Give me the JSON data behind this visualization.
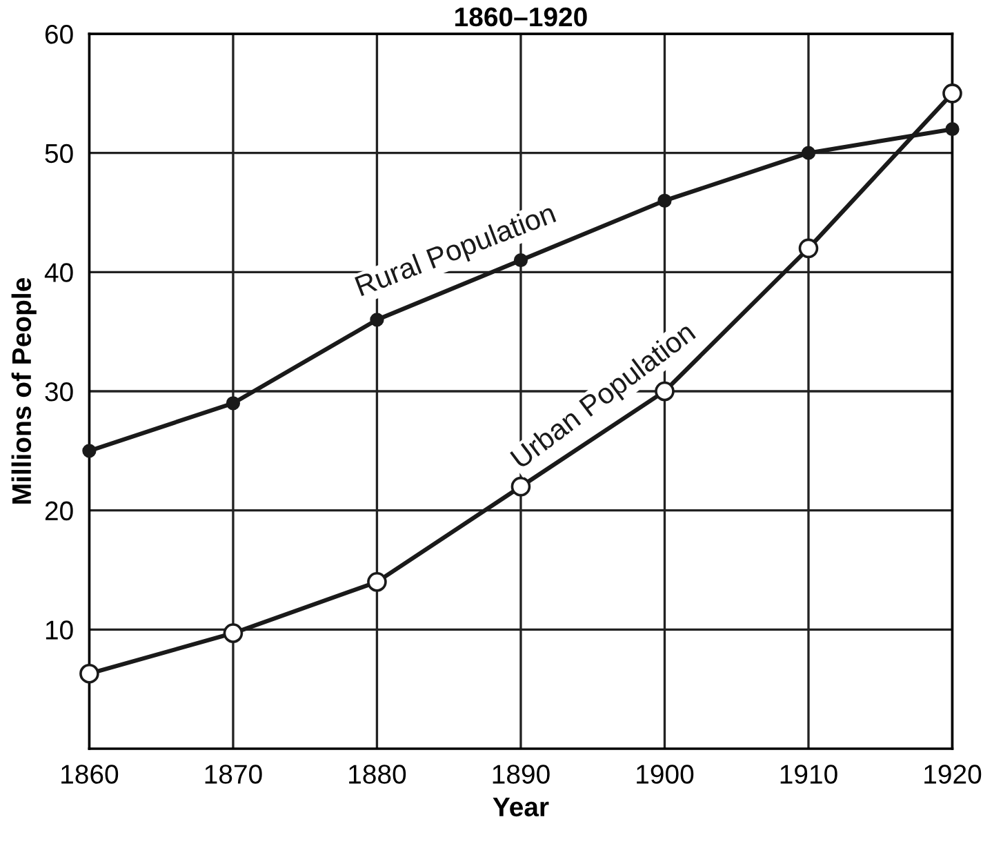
{
  "chart_data": {
    "type": "line",
    "title": "1860–1920",
    "xlabel": "Year",
    "ylabel": "Millions of People",
    "x": [
      1860,
      1870,
      1880,
      1890,
      1900,
      1910,
      1920
    ],
    "series": [
      {
        "name": "Rural Population",
        "color": "#1a1a1a",
        "marker": "circle",
        "values": [
          25,
          29,
          36,
          41,
          46,
          50,
          52
        ]
      },
      {
        "name": "Urban Population",
        "color": "#1a1a1a",
        "marker": "circle",
        "values": [
          6.3,
          9.7,
          14,
          22,
          30,
          42,
          55
        ]
      }
    ],
    "xlim": [
      1860,
      1920
    ],
    "xticks": [
      1860,
      1870,
      1880,
      1890,
      1900,
      1910,
      1920
    ],
    "ylim": [
      0,
      60
    ],
    "yticks": [
      10,
      20,
      30,
      40,
      50,
      60
    ],
    "grid": true,
    "legend": false,
    "line_style": "solid"
  }
}
